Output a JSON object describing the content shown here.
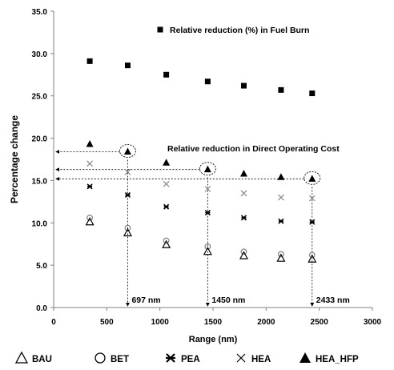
{
  "chart_data": {
    "type": "scatter",
    "xlabel": "Range (nm)",
    "ylabel": "Percentage change",
    "xlim": [
      0,
      3000
    ],
    "ylim": [
      0,
      35
    ],
    "xticks": [
      "0",
      "500",
      "1000",
      "1500",
      "2000",
      "2500",
      "3000"
    ],
    "yticks": [
      "0.0",
      "5.0",
      "10.0",
      "15.0",
      "20.0",
      "25.0",
      "30.0",
      "35.0"
    ],
    "grid": false,
    "x": [
      340,
      697,
      1060,
      1450,
      1790,
      2140,
      2433
    ],
    "series": [
      {
        "name": "Relative reduction (%) in Fuel Burn",
        "marker": "square",
        "values": [
          29.1,
          28.6,
          27.5,
          26.7,
          26.2,
          25.7,
          25.3
        ]
      },
      {
        "name": "HEA_HFP",
        "marker": "triangle-filled",
        "values": [
          19.3,
          18.4,
          17.1,
          16.3,
          15.8,
          15.4,
          15.2
        ]
      },
      {
        "name": "HEA",
        "marker": "x",
        "values": [
          17.0,
          16.0,
          14.6,
          14.0,
          13.5,
          13.0,
          12.9
        ]
      },
      {
        "name": "PEA",
        "marker": "asterisk",
        "values": [
          14.3,
          13.3,
          11.9,
          11.2,
          10.6,
          10.2,
          10.1
        ]
      },
      {
        "name": "BET",
        "marker": "circle-open",
        "values": [
          10.6,
          9.4,
          7.9,
          7.2,
          6.6,
          6.3,
          6.2
        ]
      },
      {
        "name": "BAU",
        "marker": "triangle-open",
        "values": [
          10.1,
          8.8,
          7.4,
          6.6,
          6.1,
          5.8,
          5.7
        ]
      }
    ],
    "annotations": {
      "fuel_burn_label": "Relative reduction (%) in Fuel Burn",
      "doc_label": "Relative reduction in Direct Operating Cost",
      "range_markers": [
        {
          "x": 697,
          "y": 18.4,
          "label": "697 nm"
        },
        {
          "x": 1450,
          "y": 16.3,
          "label": "1450 nm"
        },
        {
          "x": 2433,
          "y": 15.2,
          "label": "2433 nm"
        }
      ]
    },
    "legend": {
      "placement": "bottom",
      "entries": [
        {
          "label": "BAU",
          "marker": "triangle-open"
        },
        {
          "label": "BET",
          "marker": "circle-open"
        },
        {
          "label": "PEA",
          "marker": "asterisk"
        },
        {
          "label": "HEA",
          "marker": "x"
        },
        {
          "label": "HEA_HFP",
          "marker": "triangle-filled"
        }
      ]
    }
  }
}
